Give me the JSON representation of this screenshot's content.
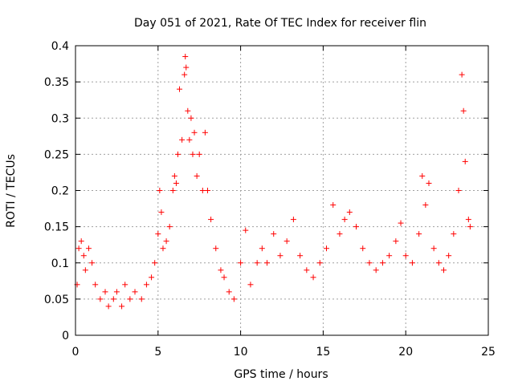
{
  "chart_data": {
    "type": "scatter",
    "title": "Day 051 of 2021, Rate Of TEC Index for receiver flin",
    "xlabel": "GPS time / hours",
    "ylabel": "ROTI / TECUs",
    "xlim": [
      0,
      25
    ],
    "ylim": [
      0,
      0.4
    ],
    "xticks": [
      0,
      5,
      10,
      15,
      20,
      25
    ],
    "yticks": [
      0,
      0.05,
      0.1,
      0.15,
      0.2,
      0.25,
      0.3,
      0.35,
      0.4
    ],
    "xtick_labels": [
      "0",
      "5",
      "10",
      "15",
      "20",
      "25"
    ],
    "ytick_labels": [
      "0",
      "0.05",
      "0.1",
      "0.15",
      "0.2",
      "0.25",
      "0.3",
      "0.35",
      "0.4"
    ],
    "grid": true,
    "marker": "+",
    "marker_color": "#ff0000",
    "series": [
      {
        "name": "ROTI",
        "points": [
          [
            0.1,
            0.07
          ],
          [
            0.2,
            0.12
          ],
          [
            0.35,
            0.13
          ],
          [
            0.5,
            0.11
          ],
          [
            0.6,
            0.09
          ],
          [
            0.8,
            0.12
          ],
          [
            1.0,
            0.1
          ],
          [
            1.2,
            0.07
          ],
          [
            1.5,
            0.05
          ],
          [
            1.8,
            0.06
          ],
          [
            2.0,
            0.04
          ],
          [
            2.3,
            0.05
          ],
          [
            2.5,
            0.06
          ],
          [
            2.8,
            0.04
          ],
          [
            3.0,
            0.07
          ],
          [
            3.3,
            0.05
          ],
          [
            3.6,
            0.06
          ],
          [
            4.0,
            0.05
          ],
          [
            4.3,
            0.07
          ],
          [
            4.6,
            0.08
          ],
          [
            4.8,
            0.1
          ],
          [
            5.0,
            0.14
          ],
          [
            5.1,
            0.2
          ],
          [
            5.2,
            0.17
          ],
          [
            5.3,
            0.12
          ],
          [
            5.5,
            0.13
          ],
          [
            5.7,
            0.15
          ],
          [
            5.9,
            0.2
          ],
          [
            6.0,
            0.22
          ],
          [
            6.1,
            0.21
          ],
          [
            6.2,
            0.25
          ],
          [
            6.3,
            0.34
          ],
          [
            6.45,
            0.27
          ],
          [
            6.6,
            0.36
          ],
          [
            6.65,
            0.385
          ],
          [
            6.7,
            0.37
          ],
          [
            6.8,
            0.31
          ],
          [
            6.9,
            0.27
          ],
          [
            7.0,
            0.3
          ],
          [
            7.1,
            0.25
          ],
          [
            7.2,
            0.28
          ],
          [
            7.35,
            0.22
          ],
          [
            7.5,
            0.25
          ],
          [
            7.7,
            0.2
          ],
          [
            7.85,
            0.28
          ],
          [
            8.0,
            0.2
          ],
          [
            8.2,
            0.16
          ],
          [
            8.5,
            0.12
          ],
          [
            8.8,
            0.09
          ],
          [
            9.0,
            0.08
          ],
          [
            9.3,
            0.06
          ],
          [
            9.6,
            0.05
          ],
          [
            10.0,
            0.1
          ],
          [
            10.3,
            0.145
          ],
          [
            10.6,
            0.07
          ],
          [
            11.0,
            0.1
          ],
          [
            11.3,
            0.12
          ],
          [
            11.6,
            0.1
          ],
          [
            12.0,
            0.14
          ],
          [
            12.4,
            0.11
          ],
          [
            12.8,
            0.13
          ],
          [
            13.2,
            0.16
          ],
          [
            13.6,
            0.11
          ],
          [
            14.0,
            0.09
          ],
          [
            14.4,
            0.08
          ],
          [
            14.8,
            0.1
          ],
          [
            15.2,
            0.12
          ],
          [
            15.6,
            0.18
          ],
          [
            16.0,
            0.14
          ],
          [
            16.3,
            0.16
          ],
          [
            16.6,
            0.17
          ],
          [
            17.0,
            0.15
          ],
          [
            17.4,
            0.12
          ],
          [
            17.8,
            0.1
          ],
          [
            18.2,
            0.09
          ],
          [
            18.6,
            0.1
          ],
          [
            19.0,
            0.11
          ],
          [
            19.4,
            0.13
          ],
          [
            19.7,
            0.155
          ],
          [
            20.0,
            0.11
          ],
          [
            20.4,
            0.1
          ],
          [
            20.8,
            0.14
          ],
          [
            21.0,
            0.22
          ],
          [
            21.2,
            0.18
          ],
          [
            21.4,
            0.21
          ],
          [
            21.7,
            0.12
          ],
          [
            22.0,
            0.1
          ],
          [
            22.3,
            0.09
          ],
          [
            22.6,
            0.11
          ],
          [
            22.9,
            0.14
          ],
          [
            23.2,
            0.2
          ],
          [
            23.4,
            0.36
          ],
          [
            23.5,
            0.31
          ],
          [
            23.6,
            0.24
          ],
          [
            23.8,
            0.16
          ],
          [
            23.9,
            0.15
          ]
        ]
      }
    ]
  }
}
